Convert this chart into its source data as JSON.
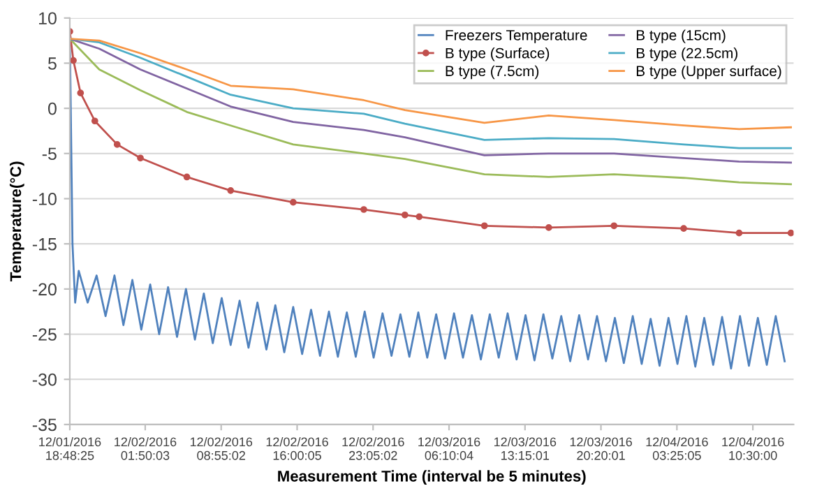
{
  "chart_data": {
    "type": "line",
    "xlabel": "Measurement Time (interval be 5 minutes)",
    "ylabel": "Temperature(°C)",
    "xlim": [
      "2016-12-01T18:48",
      "2016-12-04T14:18"
    ],
    "ylim": [
      -35,
      10
    ],
    "yticks": [
      -35,
      -30,
      -25,
      -20,
      -15,
      -10,
      -5,
      0,
      5,
      10
    ],
    "xticks": [
      {
        "value": "2016-12-01T18:48",
        "label": "12/01/2016 18:48:25"
      },
      {
        "value": "2016-12-02T01:50",
        "label": "12/02/2016 01:50:03"
      },
      {
        "value": "2016-12-02T08:55",
        "label": "12/02/2016 08:55:02"
      },
      {
        "value": "2016-12-02T16:00",
        "label": "12/02/2016 16:00:05"
      },
      {
        "value": "2016-12-02T23:05",
        "label": "12/02/2016 23:05:02"
      },
      {
        "value": "2016-12-03T06:10",
        "label": "12/03/2016 06:10:04"
      },
      {
        "value": "2016-12-03T13:15",
        "label": "12/03/2016 13:15:01"
      },
      {
        "value": "2016-12-03T20:20",
        "label": "12/03/2016 20:20:01"
      },
      {
        "value": "2016-12-04T03:25",
        "label": "12/04/2016 03:25:05"
      },
      {
        "value": "2016-12-04T10:30",
        "label": "12/04/2016 10:30:00"
      }
    ],
    "grid": "y",
    "legend": "top right",
    "series": [
      {
        "name": "Freezers Temperature",
        "color": "#4f81bd",
        "x": [
          "2016-12-01T18:48",
          "2016-12-01T19:03",
          "2016-12-01T19:18",
          "2016-12-01T19:38",
          "2016-12-01T20:28",
          "2016-12-01T21:18",
          "2016-12-01T22:08",
          "2016-12-01T22:58",
          "2016-12-01T23:48",
          "2016-12-02T00:38",
          "2016-12-02T01:28",
          "2016-12-02T02:18",
          "2016-12-02T03:08",
          "2016-12-02T03:58",
          "2016-12-02T04:48",
          "2016-12-02T05:38",
          "2016-12-02T06:28",
          "2016-12-02T07:18",
          "2016-12-02T08:08",
          "2016-12-02T08:58",
          "2016-12-02T09:48",
          "2016-12-02T10:38",
          "2016-12-02T11:28",
          "2016-12-02T12:18",
          "2016-12-02T13:08",
          "2016-12-02T13:58",
          "2016-12-02T14:48",
          "2016-12-02T15:38",
          "2016-12-02T16:28",
          "2016-12-02T17:18",
          "2016-12-02T18:08",
          "2016-12-02T18:58",
          "2016-12-02T19:48",
          "2016-12-02T20:38",
          "2016-12-02T21:28",
          "2016-12-02T22:18",
          "2016-12-02T23:08",
          "2016-12-02T23:58",
          "2016-12-03T00:48",
          "2016-12-03T01:38",
          "2016-12-03T02:28",
          "2016-12-03T03:18",
          "2016-12-03T04:08",
          "2016-12-03T04:58",
          "2016-12-03T05:48",
          "2016-12-03T06:38",
          "2016-12-03T07:28",
          "2016-12-03T08:18",
          "2016-12-03T09:08",
          "2016-12-03T09:58",
          "2016-12-03T10:48",
          "2016-12-03T11:38",
          "2016-12-03T12:28",
          "2016-12-03T13:18",
          "2016-12-03T14:08",
          "2016-12-03T14:58",
          "2016-12-03T15:48",
          "2016-12-03T16:38",
          "2016-12-03T17:28",
          "2016-12-03T18:18",
          "2016-12-03T19:08",
          "2016-12-03T19:58",
          "2016-12-03T20:48",
          "2016-12-03T21:38",
          "2016-12-03T22:28",
          "2016-12-03T23:18",
          "2016-12-04T00:08",
          "2016-12-04T00:58",
          "2016-12-04T01:48",
          "2016-12-04T02:38",
          "2016-12-04T03:28",
          "2016-12-04T04:18",
          "2016-12-04T05:08",
          "2016-12-04T05:58",
          "2016-12-04T06:48",
          "2016-12-04T07:38",
          "2016-12-04T08:28",
          "2016-12-04T09:18",
          "2016-12-04T10:08",
          "2016-12-04T10:58",
          "2016-12-04T11:48",
          "2016-12-04T12:38",
          "2016-12-04T13:28"
        ],
        "values": [
          8,
          -15,
          -21.5,
          -18,
          -21.5,
          -18.5,
          -23,
          -18.5,
          -24,
          -19,
          -24.5,
          -19.5,
          -25,
          -19.8,
          -25.3,
          -20,
          -25.6,
          -20.5,
          -26,
          -21,
          -26.2,
          -21.3,
          -26.5,
          -21.5,
          -26.7,
          -21.8,
          -27,
          -22,
          -27.2,
          -22.3,
          -27.4,
          -22.5,
          -27.5,
          -22.6,
          -27.5,
          -22.5,
          -27.6,
          -22.7,
          -27.4,
          -22.8,
          -27.5,
          -22.6,
          -27.6,
          -22.8,
          -27.7,
          -22.7,
          -27.6,
          -22.9,
          -27.8,
          -22.8,
          -27.6,
          -22.7,
          -27.8,
          -22.9,
          -27.9,
          -22.8,
          -27.7,
          -23,
          -28,
          -22.9,
          -27.8,
          -23,
          -28,
          -23.2,
          -28.2,
          -23,
          -28.3,
          -23.3,
          -28.5,
          -23.2,
          -28.3,
          -23,
          -28.6,
          -23.2,
          -28.4,
          -23.1,
          -28.8,
          -23,
          -28.5,
          -23.2,
          -28.4,
          -23,
          -28
        ]
      },
      {
        "name": "B type (Surface)",
        "color": "#c0504d",
        "marker": "circle",
        "x": [
          "2016-12-01T18:48",
          "2016-12-01T19:08",
          "2016-12-01T19:48",
          "2016-12-01T21:08",
          "2016-12-01T23:13",
          "2016-12-02T01:23",
          "2016-12-02T05:43",
          "2016-12-02T09:48",
          "2016-12-02T15:38",
          "2016-12-02T22:13",
          "2016-12-03T02:03",
          "2016-12-03T03:23",
          "2016-12-03T09:28",
          "2016-12-03T15:28",
          "2016-12-03T21:33",
          "2016-12-04T04:03",
          "2016-12-04T09:13",
          "2016-12-04T14:03"
        ],
        "values": [
          8.5,
          5.3,
          1.7,
          -1.4,
          -4.0,
          -5.5,
          -7.6,
          -9.1,
          -10.4,
          -11.2,
          -11.8,
          -12.0,
          -13.0,
          -13.2,
          -13.0,
          -13.3,
          -13.8,
          -13.8
        ]
      },
      {
        "name": "B type (7.5cm)",
        "color": "#9bbb59",
        "x": [
          "2016-12-01T18:48",
          "2016-12-01T21:33",
          "2016-12-02T01:23",
          "2016-12-02T05:43",
          "2016-12-02T09:48",
          "2016-12-02T15:38",
          "2016-12-02T22:13",
          "2016-12-03T02:03",
          "2016-12-03T09:28",
          "2016-12-03T15:28",
          "2016-12-03T21:33",
          "2016-12-04T04:03",
          "2016-12-04T09:13",
          "2016-12-04T14:03"
        ],
        "values": [
          7.7,
          4.3,
          2.0,
          -0.4,
          -1.9,
          -4.0,
          -5.0,
          -5.6,
          -7.3,
          -7.6,
          -7.3,
          -7.7,
          -8.2,
          -8.4
        ]
      },
      {
        "name": "B type (15cm)",
        "color": "#8064a2",
        "x": [
          "2016-12-01T18:48",
          "2016-12-01T21:33",
          "2016-12-02T01:23",
          "2016-12-02T05:43",
          "2016-12-02T09:48",
          "2016-12-02T15:38",
          "2016-12-02T22:13",
          "2016-12-03T02:03",
          "2016-12-03T09:28",
          "2016-12-03T15:28",
          "2016-12-03T21:33",
          "2016-12-04T04:03",
          "2016-12-04T09:13",
          "2016-12-04T14:03"
        ],
        "values": [
          7.7,
          6.6,
          4.3,
          2.2,
          0.2,
          -1.5,
          -2.4,
          -3.2,
          -5.2,
          -5.0,
          -5.0,
          -5.5,
          -5.9,
          -6.0
        ]
      },
      {
        "name": "B type (22.5cm)",
        "color": "#4bacc6",
        "x": [
          "2016-12-01T18:48",
          "2016-12-01T21:33",
          "2016-12-02T01:23",
          "2016-12-02T05:43",
          "2016-12-02T09:48",
          "2016-12-02T15:38",
          "2016-12-02T22:13",
          "2016-12-03T02:03",
          "2016-12-03T09:28",
          "2016-12-03T15:28",
          "2016-12-03T21:33",
          "2016-12-04T04:03",
          "2016-12-04T09:13",
          "2016-12-04T14:03"
        ],
        "values": [
          7.7,
          7.3,
          5.6,
          3.5,
          1.5,
          0.0,
          -0.6,
          -1.7,
          -3.5,
          -3.3,
          -3.4,
          -4.0,
          -4.4,
          -4.4
        ]
      },
      {
        "name": "B type (Upper surface)",
        "color": "#f79646",
        "x": [
          "2016-12-01T18:48",
          "2016-12-01T21:33",
          "2016-12-02T01:23",
          "2016-12-02T05:43",
          "2016-12-02T09:48",
          "2016-12-02T15:38",
          "2016-12-02T22:13",
          "2016-12-03T02:03",
          "2016-12-03T09:28",
          "2016-12-03T15:28",
          "2016-12-03T21:33",
          "2016-12-04T04:03",
          "2016-12-04T09:13",
          "2016-12-04T14:03"
        ],
        "values": [
          7.7,
          7.5,
          6.1,
          4.3,
          2.5,
          2.1,
          0.9,
          -0.2,
          -1.6,
          -0.8,
          -1.3,
          -1.9,
          -2.3,
          -2.1
        ]
      }
    ]
  }
}
